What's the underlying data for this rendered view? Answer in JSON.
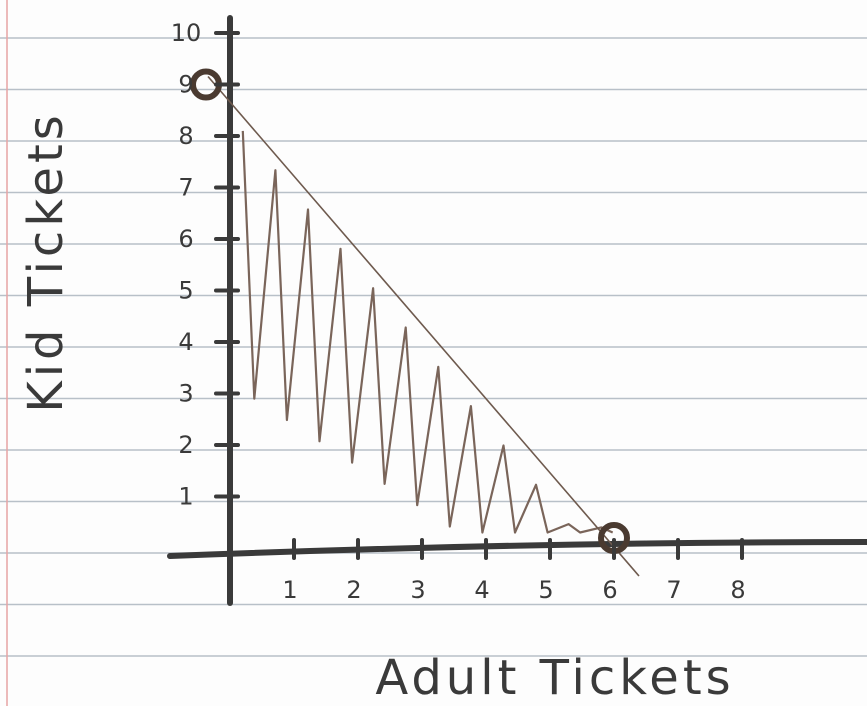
{
  "chart_data": {
    "type": "line",
    "title": "",
    "xlabel": "Adult Tickets",
    "ylabel": "Kid Tickets",
    "x_ticks": [
      1,
      2,
      3,
      4,
      5,
      6,
      7,
      8
    ],
    "y_ticks": [
      1,
      2,
      3,
      4,
      5,
      6,
      7,
      8,
      9,
      10
    ],
    "xlim": [
      0,
      8
    ],
    "ylim": [
      0,
      10
    ],
    "grid": false,
    "series": [
      {
        "points": [
          {
            "x": 0,
            "y": 9
          },
          {
            "x": 6,
            "y": 0
          }
        ]
      }
    ],
    "marked_points": [
      {
        "x": 0,
        "y": 9
      },
      {
        "x": 6,
        "y": 0
      }
    ],
    "shaded_region": "below the line (x ≥ 0, y ≥ 0)"
  },
  "colors": {
    "ink": "#3a3a3a",
    "line": "#6e5a4e",
    "shading": "#7a655a",
    "paper_rule": "#b8c0c8",
    "margin_rule": "#e7a4a4"
  }
}
